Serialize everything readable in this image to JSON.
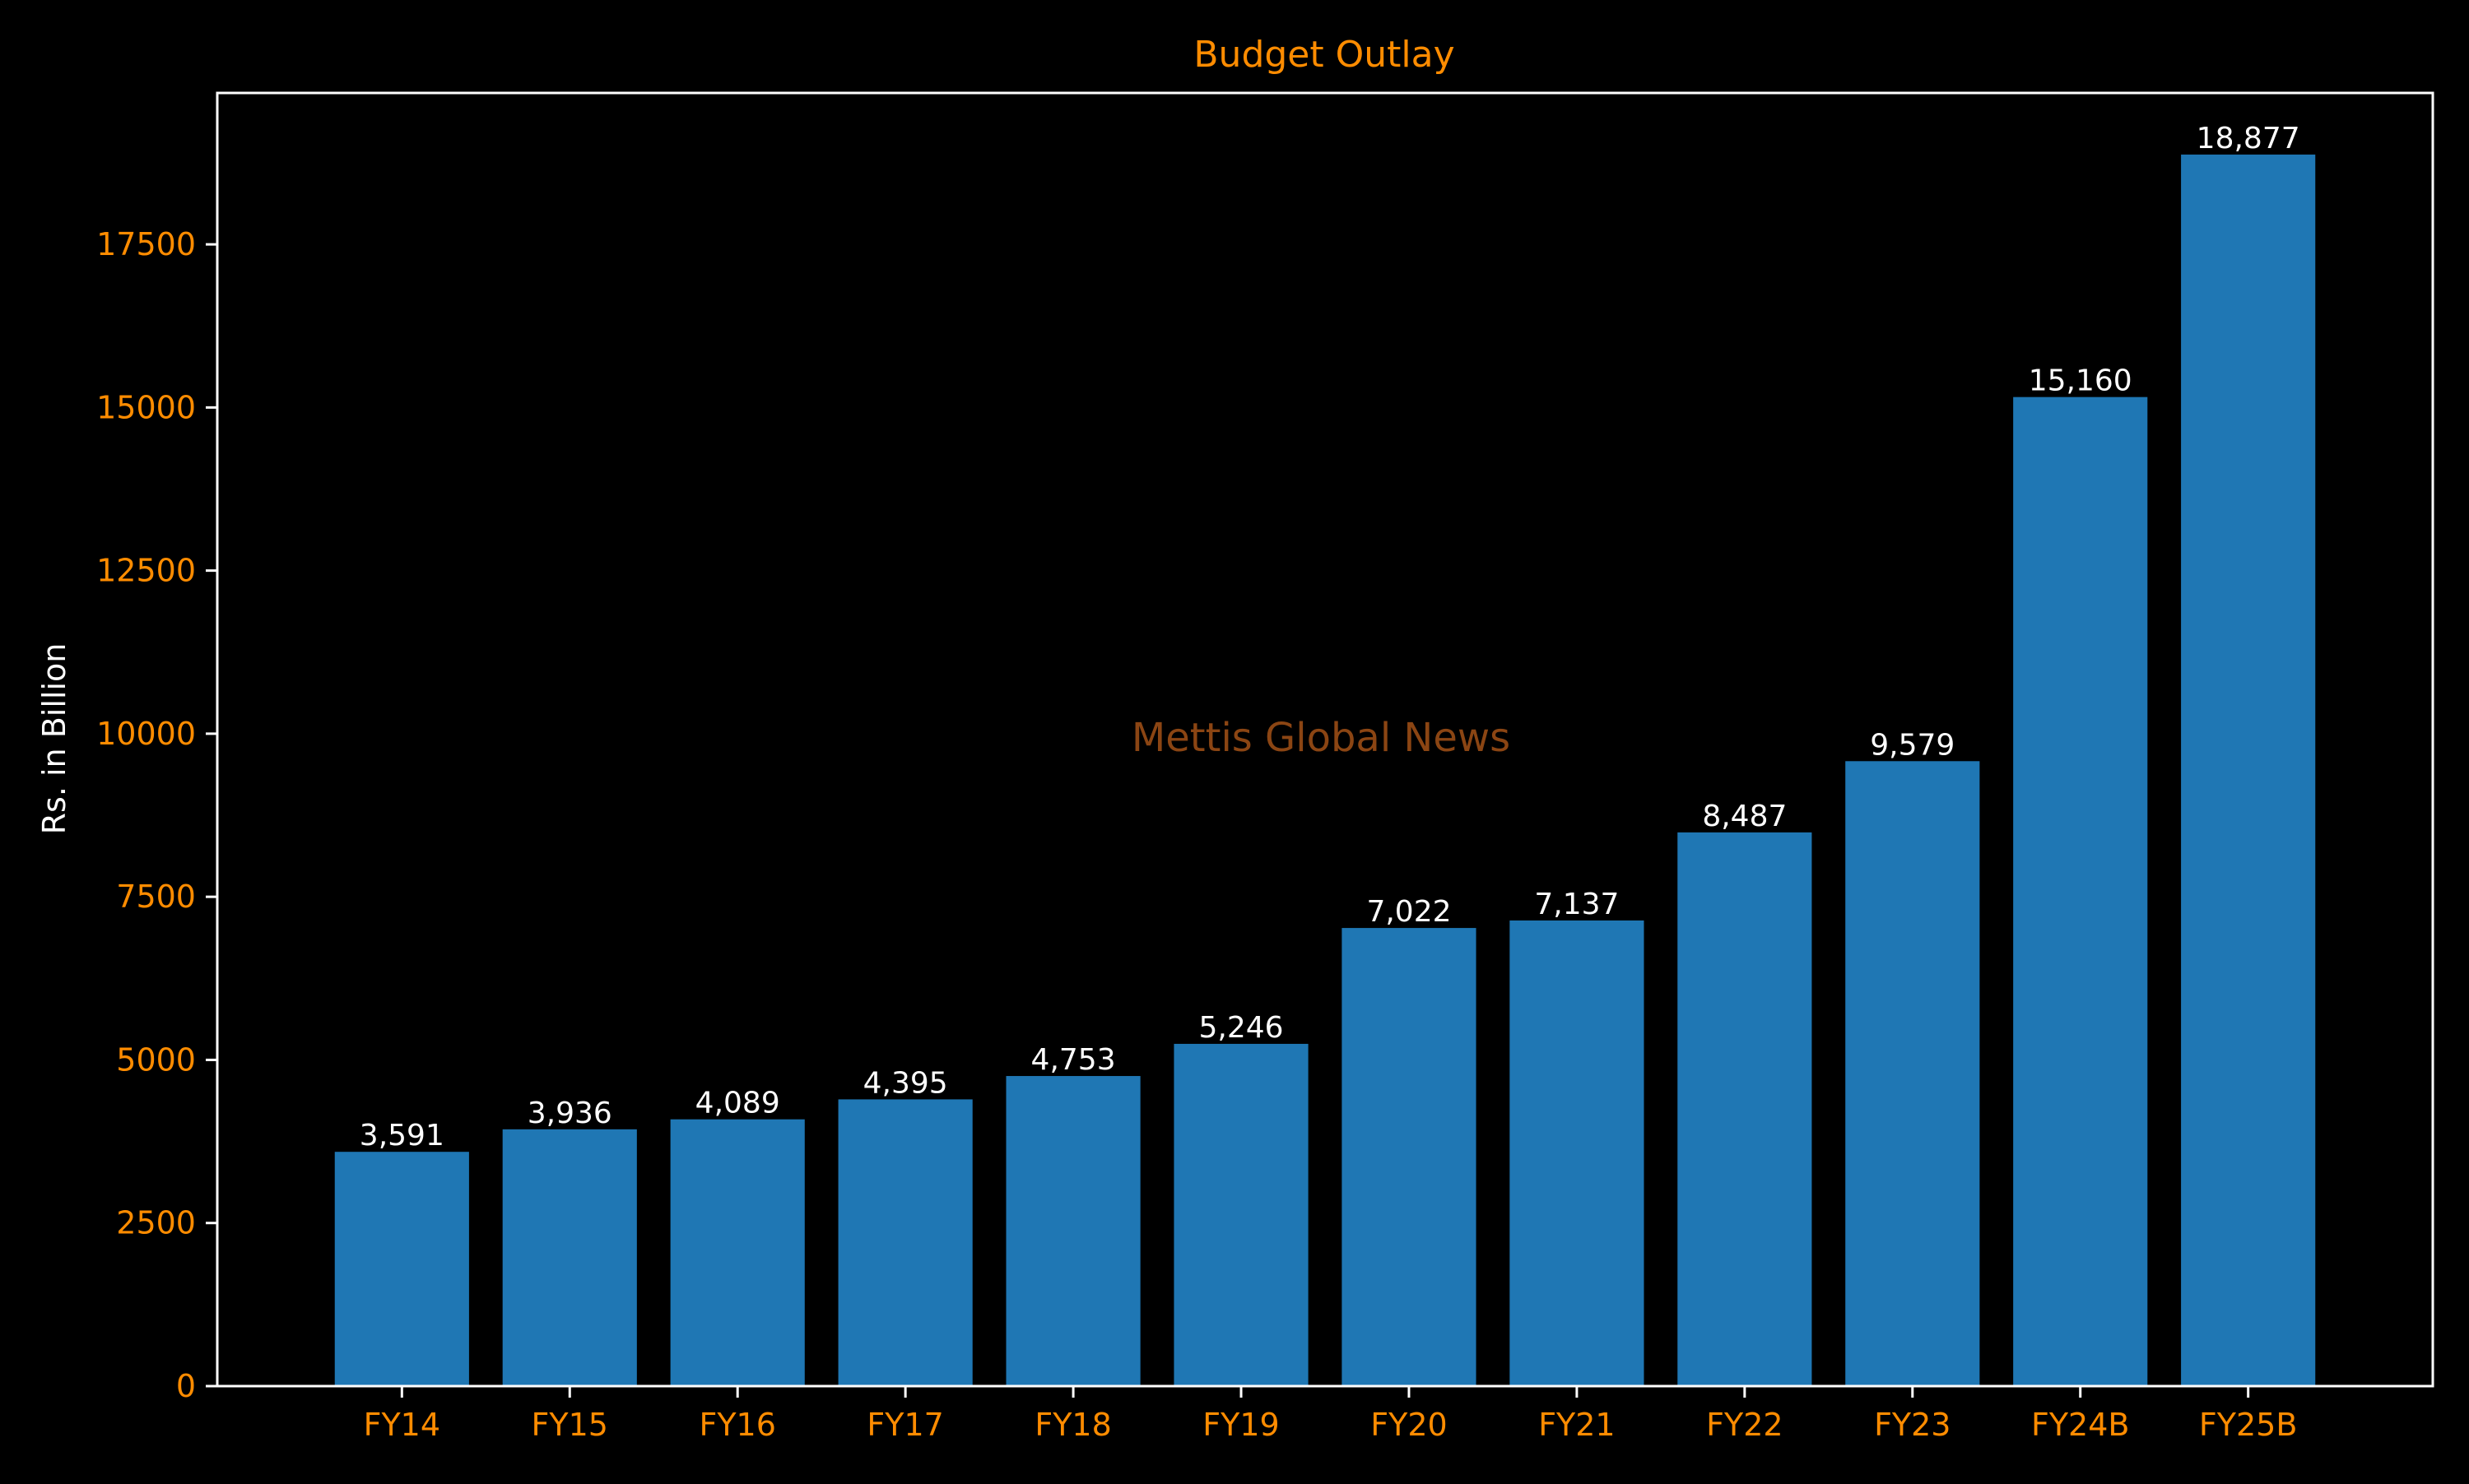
{
  "chart_data": {
    "type": "bar",
    "title": "Budget Outlay",
    "xlabel": "",
    "ylabel": "Rs. in Billion",
    "watermark": "Mettis Global News",
    "categories": [
      "FY14",
      "FY15",
      "FY16",
      "FY17",
      "FY18",
      "FY19",
      "FY20",
      "FY21",
      "FY22",
      "FY23",
      "FY24B",
      "FY25B"
    ],
    "values": [
      3591,
      3936,
      4089,
      4395,
      4753,
      5246,
      7022,
      7137,
      8487,
      9579,
      15160,
      18877
    ],
    "value_labels": [
      "3,591",
      "3,936",
      "4,089",
      "4,395",
      "4,753",
      "5,246",
      "7,022",
      "7,137",
      "8,487",
      "9,579",
      "15,160",
      "18,877"
    ],
    "yticks": [
      0,
      2500,
      5000,
      7500,
      10000,
      12500,
      15000,
      17500
    ],
    "ylim": [
      0,
      19821
    ],
    "grid": false,
    "legend": "none",
    "colors": {
      "background": "#000000",
      "bar": "#1f77b4",
      "title": "#ff8c00",
      "tick_labels": "#ff8c00",
      "ylabel": "#ffffff",
      "value_labels": "#ffffff",
      "axes": "#ffffff",
      "watermark": "#8b4513"
    }
  }
}
